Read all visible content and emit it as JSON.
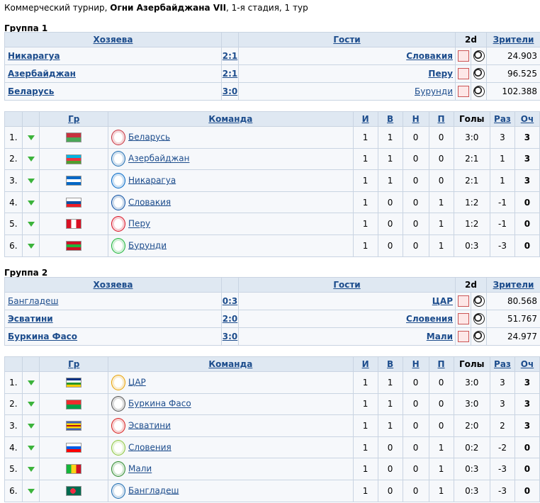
{
  "header": {
    "prefix": "Коммерческий турнир, ",
    "tournament": "Огни Азербайджана VII",
    "suffix": ", 1-я стадия, 1 тур"
  },
  "match_headers": {
    "home": "Хозяева",
    "away": "Гости",
    "twod": "2d",
    "spectators": "Зрители"
  },
  "standings_headers": {
    "gr": "Гр",
    "team": "Команда",
    "i": "И",
    "w": "В",
    "d": "Н",
    "l": "П",
    "goals": "Голы",
    "diff": "Раз",
    "pts": "Оч"
  },
  "groups": [
    {
      "title": "Группа 1",
      "matches": [
        {
          "home": "Никарагуа",
          "score": "2:1",
          "away": "Словакия",
          "spectators": "24.903",
          "home_bold": true,
          "away_bold": true
        },
        {
          "home": "Азербайджан",
          "score": "2:1",
          "away": "Перу",
          "spectators": "96.525",
          "home_bold": true,
          "away_bold": true
        },
        {
          "home": "Беларусь",
          "score": "3:0",
          "away": "Бурунди",
          "spectators": "102.388",
          "home_bold": true,
          "away_bold": false
        }
      ],
      "standings": [
        {
          "pos": "1.",
          "team": "Беларусь",
          "i": "1",
          "w": "1",
          "d": "0",
          "l": "0",
          "goals": "3:0",
          "diff": "3",
          "pts": "3",
          "flag": [
            "#c8313e",
            "#4aa657"
          ],
          "logo_color": "#c8313e"
        },
        {
          "pos": "2.",
          "team": "Азербайджан",
          "i": "1",
          "w": "1",
          "d": "0",
          "l": "0",
          "goals": "2:1",
          "diff": "1",
          "pts": "3",
          "flag": [
            "#00b5e2",
            "#ef3340",
            "#509e2f"
          ],
          "logo_color": "#1c6bb0"
        },
        {
          "pos": "3.",
          "team": "Никарагуа",
          "i": "1",
          "w": "1",
          "d": "0",
          "l": "0",
          "goals": "2:1",
          "diff": "1",
          "pts": "3",
          "flag": [
            "#0067c6",
            "#ffffff",
            "#0067c6"
          ],
          "logo_color": "#0067c6"
        },
        {
          "pos": "4.",
          "team": "Словакия",
          "i": "1",
          "w": "0",
          "d": "0",
          "l": "1",
          "goals": "1:2",
          "diff": "-1",
          "pts": "0",
          "flag": [
            "#ffffff",
            "#0b4ea2",
            "#ee1c25"
          ],
          "logo_color": "#0b4ea2"
        },
        {
          "pos": "5.",
          "team": "Перу",
          "i": "1",
          "w": "0",
          "d": "0",
          "l": "1",
          "goals": "1:2",
          "diff": "-1",
          "pts": "0",
          "flag": [
            "#d91023",
            "#ffffff",
            "#d91023"
          ],
          "flag_vertical": true,
          "logo_color": "#d91023"
        },
        {
          "pos": "6.",
          "team": "Бурунди",
          "i": "1",
          "w": "0",
          "d": "0",
          "l": "1",
          "goals": "0:3",
          "diff": "-3",
          "pts": "0",
          "flag": [
            "#ce1126",
            "#1eb53a",
            "#ce1126"
          ],
          "logo_color": "#1eb53a"
        }
      ]
    },
    {
      "title": "Группа 2",
      "matches": [
        {
          "home": "Бангладеш",
          "score": "0:3",
          "away": "ЦАР",
          "spectators": "80.568",
          "home_bold": false,
          "away_bold": true
        },
        {
          "home": "Эсватини",
          "score": "2:0",
          "away": "Словения",
          "spectators": "51.767",
          "home_bold": true,
          "away_bold": true
        },
        {
          "home": "Буркина Фасо",
          "score": "3:0",
          "away": "Мали",
          "spectators": "24.977",
          "home_bold": true,
          "away_bold": true
        }
      ],
      "standings": [
        {
          "pos": "1.",
          "team": "ЦАР",
          "i": "1",
          "w": "1",
          "d": "0",
          "l": "0",
          "goals": "3:0",
          "diff": "3",
          "pts": "3",
          "flag": [
            "#003082",
            "#ffffff",
            "#289728",
            "#ffce00"
          ],
          "logo_color": "#e8a000"
        },
        {
          "pos": "2.",
          "team": "Буркина Фасо",
          "i": "1",
          "w": "1",
          "d": "0",
          "l": "0",
          "goals": "3:0",
          "diff": "3",
          "pts": "3",
          "flag": [
            "#ef2b2d",
            "#009e49"
          ],
          "logo_color": "#555555"
        },
        {
          "pos": "3.",
          "team": "Эсватини",
          "i": "1",
          "w": "1",
          "d": "0",
          "l": "0",
          "goals": "2:0",
          "diff": "2",
          "pts": "3",
          "flag": [
            "#3e5eb9",
            "#ffd900",
            "#b10c0c",
            "#ffd900",
            "#3e5eb9"
          ],
          "logo_color": "#d81e1e"
        },
        {
          "pos": "4.",
          "team": "Словения",
          "i": "1",
          "w": "0",
          "d": "0",
          "l": "1",
          "goals": "0:2",
          "diff": "-2",
          "pts": "0",
          "flag": [
            "#ffffff",
            "#005ce5",
            "#ff0000"
          ],
          "logo_color": "#8cc63f"
        },
        {
          "pos": "5.",
          "team": "Мали",
          "i": "1",
          "w": "0",
          "d": "0",
          "l": "1",
          "goals": "0:3",
          "diff": "-3",
          "pts": "0",
          "flag": [
            "#14b53a",
            "#fcd116",
            "#ce1126"
          ],
          "flag_vertical": true,
          "logo_color": "#2e8b2e"
        },
        {
          "pos": "6.",
          "team": "Бангладеш",
          "i": "1",
          "w": "0",
          "d": "0",
          "l": "1",
          "goals": "0:3",
          "diff": "-3",
          "pts": "0",
          "flag": [
            "#006a4e",
            "#006a4e"
          ],
          "flag_circle": "#f42a41",
          "logo_color": "#1c6bb0"
        }
      ]
    }
  ]
}
